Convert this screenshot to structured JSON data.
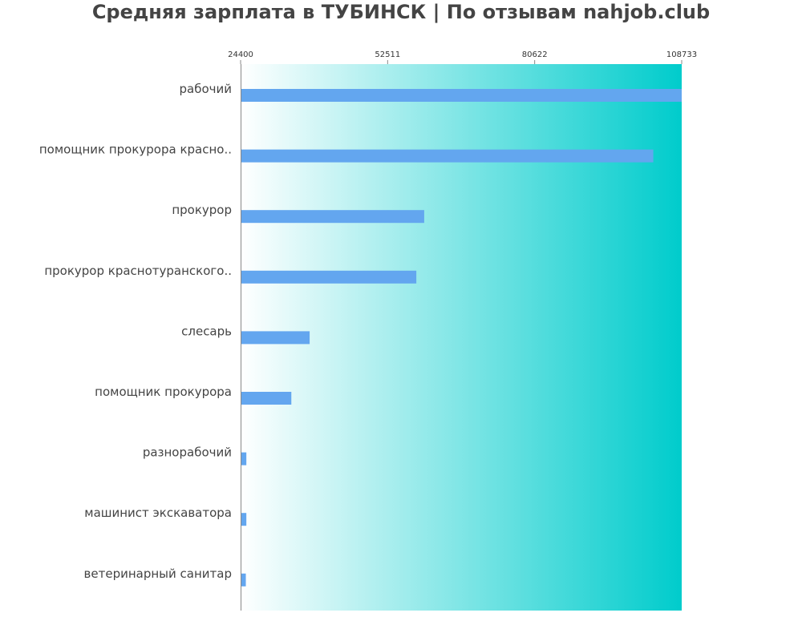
{
  "chart_data": {
    "type": "bar",
    "orientation": "horizontal",
    "title": "Средняя зарплата в ТУБИНСК | По отзывам nahjob.club",
    "xlabel": "",
    "ylabel": "",
    "x_ticks": [
      "24400",
      "52511",
      "80622",
      "108733"
    ],
    "xlim": [
      24400,
      108733
    ],
    "grid": false,
    "categories": [
      "рабочий",
      "помощник прокурора красно..",
      "прокурор",
      "прокурор краснотуранского..",
      "слесарь",
      "помощник прокурора",
      "разнорабочий",
      "машинист экскаватора",
      "ветеринарный санитар"
    ],
    "values": [
      108733,
      103300,
      59500,
      58000,
      37600,
      34100,
      25500,
      25500,
      25400
    ],
    "colors": {
      "bar": "#63a6ef",
      "gradient_start": "#ffffff",
      "gradient_end": "#00cccc",
      "axis": "#888888",
      "title": "#444444",
      "label": "#444444"
    }
  }
}
